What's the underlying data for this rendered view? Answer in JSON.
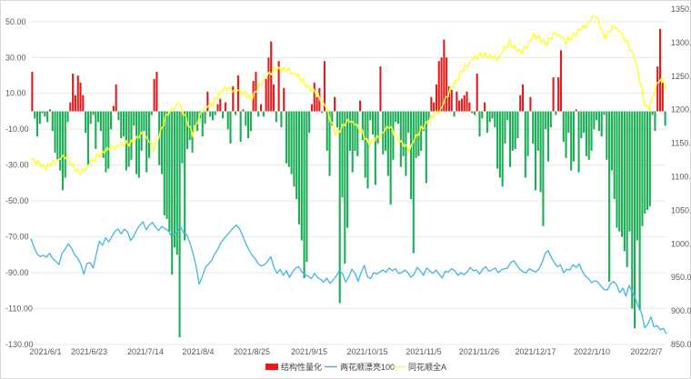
{
  "chart_data": {
    "type": "bar+line",
    "title": "",
    "x_labels": [
      "2021/6/1",
      "2021/6/23",
      "2021/7/14",
      "2021/8/4",
      "2021/8/25",
      "2021/9/15",
      "2021/10/15",
      "2021/11/5",
      "2021/11/26",
      "2021/12/17",
      "2022/1/10",
      "2022/2/7"
    ],
    "left_axis": {
      "ticks": [
        "50.00",
        "30.00",
        "10.00",
        "-10.00",
        "-30.00",
        "-50.00",
        "-70.00",
        "-90.00",
        "-110.00",
        "-130.00"
      ],
      "ylim": [
        -130,
        57
      ]
    },
    "right_axis": {
      "ticks": [
        "1350.00",
        "1300.00",
        "1250.00",
        "1200.00",
        "1150.00",
        "1100.00",
        "1050.00",
        "1000.00",
        "950.00",
        "900.00",
        "850.00"
      ],
      "ylim": [
        850,
        1350
      ]
    },
    "legend": [
      {
        "name": "结构性量化",
        "color": "#e41a1c",
        "kind": "bar"
      },
      {
        "name": "两花顺漂亮100",
        "color": "#41b6e6",
        "kind": "line"
      },
      {
        "name": "同花顺全A",
        "color": "#ffff33",
        "kind": "line"
      }
    ],
    "colors": {
      "positive_bar": "#e41a1c",
      "negative_bar": "#1aae55",
      "line1": "#41b6e6",
      "line2": "#ffff33",
      "grid": "#e8e8e8"
    },
    "bar_values": [
      22,
      -4,
      -14,
      -7,
      -1,
      -3,
      -6,
      1,
      -11,
      -23,
      -27,
      -33,
      -44,
      -37,
      -6,
      5,
      21,
      9,
      20,
      16,
      9,
      -12,
      -30,
      -7,
      -2,
      -21,
      -6,
      -11,
      -26,
      -34,
      -32,
      -10,
      3,
      15,
      -5,
      -15,
      -14,
      -33,
      -31,
      -27,
      -8,
      -35,
      -37,
      -22,
      -11,
      -34,
      -26,
      -2,
      18,
      22,
      -30,
      -35,
      -58,
      -60,
      -67,
      -91,
      -76,
      -80,
      -126,
      -29,
      -72,
      -21,
      -16,
      -23,
      -8,
      -11,
      -4,
      -14,
      -7,
      11,
      -3,
      -5,
      -2,
      4,
      7,
      -4,
      5,
      -10,
      -18,
      14,
      -2,
      20,
      -17,
      1,
      -8,
      -15,
      -11,
      17,
      22,
      -3,
      4,
      -3,
      18,
      30,
      39,
      15,
      -6,
      28,
      -9,
      13,
      -29,
      -31,
      -35,
      -42,
      -49,
      -63,
      -72,
      -93,
      -84,
      -12,
      4,
      16,
      8,
      13,
      -1,
      28,
      -22,
      -36,
      -8,
      8,
      -9,
      -107,
      -48,
      -85,
      -65,
      -22,
      -34,
      -22,
      -25,
      6,
      -16,
      -37,
      -43,
      -5,
      -13,
      -41,
      -18,
      25,
      -24,
      -22,
      -36,
      -52,
      -27,
      -6,
      -7,
      -31,
      -25,
      -36,
      -12,
      -49,
      -79,
      -26,
      -25,
      -22,
      -11,
      -40,
      -5,
      8,
      5,
      15,
      28,
      30,
      40,
      30,
      14,
      12,
      -3,
      11,
      6,
      7,
      9,
      11,
      5,
      -1,
      -2,
      21,
      -14,
      -4,
      5,
      -12,
      -6,
      -4,
      -9,
      -32,
      -37,
      -42,
      -18,
      -5,
      -31,
      -22,
      -21,
      -15,
      9,
      15,
      -37,
      -25,
      8,
      -18,
      -44,
      -22,
      -45,
      -64,
      -10,
      -28,
      -9,
      19,
      -2,
      19,
      34,
      -17,
      -26,
      -12,
      -33,
      -28,
      1,
      -34,
      -15,
      -12,
      -25,
      -27,
      -22,
      -10,
      -5,
      -11,
      -14,
      -2,
      -27,
      -95,
      -33,
      -49,
      -65,
      -67,
      -70,
      -78,
      -87,
      -67,
      -110,
      -121,
      -72,
      -111,
      -64,
      -57,
      -55,
      -53,
      -2,
      -11,
      25,
      46,
      16,
      -8
    ],
    "line1_values": [
      1008,
      995,
      985,
      981,
      983,
      980,
      986,
      978,
      974,
      969,
      986,
      992,
      1000,
      994,
      984,
      979,
      970,
      955,
      971,
      972,
      964,
      985,
      1004,
      998,
      1009,
      1003,
      1011,
      1019,
      1022,
      1015,
      1022,
      1018,
      1005,
      1011,
      1021,
      1028,
      1033,
      1021,
      1028,
      1032,
      1025,
      1020,
      1026,
      1023,
      1020,
      1012,
      1014,
      1019,
      1026,
      1016,
      1014,
      1002,
      986,
      967,
      940,
      951,
      965,
      970,
      975,
      985,
      992,
      1002,
      1008,
      1013,
      1019,
      1024,
      1028,
      1022,
      1012,
      1000,
      991,
      983,
      978,
      970,
      967,
      969,
      974,
      981,
      965,
      956,
      962,
      953,
      960,
      950,
      958,
      964,
      966,
      958,
      954,
      952,
      948,
      956,
      950,
      947,
      943,
      949,
      941,
      946,
      952,
      960,
      956,
      943,
      950,
      962,
      957,
      944,
      957,
      968,
      951,
      948,
      957,
      955,
      958,
      961,
      958,
      964,
      960,
      963,
      956,
      957,
      961,
      957,
      950,
      955,
      965,
      960,
      953,
      964,
      960,
      956,
      961,
      955,
      949,
      959,
      958,
      963,
      960,
      953,
      957,
      954,
      958,
      965,
      960,
      961,
      955,
      962,
      966,
      959,
      961,
      964,
      957,
      961,
      963,
      964,
      972,
      975,
      968,
      962,
      958,
      957,
      963,
      960,
      958,
      962,
      971,
      985,
      990,
      980,
      972,
      966,
      969,
      957,
      962,
      961,
      969,
      965,
      970,
      959,
      952,
      948,
      942,
      945,
      943,
      937,
      932,
      931,
      940,
      944,
      939,
      927,
      934,
      922,
      938,
      929,
      919,
      906,
      897,
      875,
      880,
      891,
      876,
      878,
      872,
      874,
      866
    ]
  }
}
